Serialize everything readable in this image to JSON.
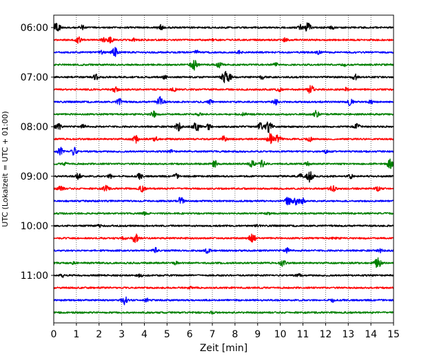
{
  "chart_data": {
    "type": "line",
    "title": "",
    "xlabel": "Zeit  [min]",
    "ylabel": "UTC (Lokalzeit = UTC + 01:00)",
    "xlim": [
      0,
      15
    ],
    "x_ticks": [
      0,
      1,
      2,
      3,
      4,
      5,
      6,
      7,
      8,
      9,
      10,
      11,
      12,
      13,
      14,
      15
    ],
    "y_ticks": [
      "06:00",
      "07:00",
      "08:00",
      "09:00",
      "10:00",
      "11:00"
    ],
    "grid": "vertical dotted lines at each minute",
    "legend": "none",
    "trace_minutes": 15,
    "colors": [
      "#000000",
      "#ff0000",
      "#0000ff",
      "#008000"
    ],
    "traces": [
      {
        "start": "06:00",
        "color": "#000000",
        "events": [
          [
            0.15,
            1.0
          ],
          [
            1.25,
            0.4
          ],
          [
            4.7,
            0.5
          ],
          [
            10.9,
            0.5
          ],
          [
            11.2,
            0.9
          ],
          [
            12.3,
            0.3
          ]
        ]
      },
      {
        "start": "06:15",
        "color": "#ff0000",
        "events": [
          [
            1.1,
            0.6
          ],
          [
            2.2,
            0.35
          ],
          [
            2.5,
            0.5
          ],
          [
            3.5,
            0.3
          ],
          [
            7.1,
            0.3
          ],
          [
            10.2,
            0.3
          ]
        ]
      },
      {
        "start": "06:30",
        "color": "#0000ff",
        "events": [
          [
            2.1,
            0.3
          ],
          [
            2.7,
            0.8
          ],
          [
            6.3,
            0.3
          ],
          [
            8.2,
            0.3
          ],
          [
            11.7,
            0.3
          ]
        ]
      },
      {
        "start": "06:45",
        "color": "#008000",
        "events": [
          [
            6.2,
            1.0
          ],
          [
            7.3,
            0.5
          ],
          [
            9.8,
            0.3
          ],
          [
            12.8,
            0.3
          ]
        ]
      },
      {
        "start": "07:00",
        "color": "#000000",
        "events": [
          [
            1.85,
            0.5
          ],
          [
            4.9,
            0.3
          ],
          [
            7.55,
            1.0
          ],
          [
            7.75,
            0.6
          ],
          [
            9.2,
            0.3
          ],
          [
            13.3,
            0.5
          ]
        ]
      },
      {
        "start": "07:15",
        "color": "#ff0000",
        "events": [
          [
            2.7,
            0.6
          ],
          [
            5.3,
            0.3
          ],
          [
            9.95,
            0.4
          ],
          [
            11.35,
            0.8
          ],
          [
            12.9,
            0.3
          ]
        ]
      },
      {
        "start": "07:30",
        "color": "#0000ff",
        "events": [
          [
            2.9,
            0.6
          ],
          [
            4.7,
            0.9
          ],
          [
            6.9,
            0.4
          ],
          [
            9.8,
            0.5
          ],
          [
            13.1,
            0.7
          ],
          [
            14.0,
            0.3
          ]
        ]
      },
      {
        "start": "07:45",
        "color": "#008000",
        "events": [
          [
            4.4,
            0.6
          ],
          [
            6.4,
            0.3
          ],
          [
            8.4,
            0.3
          ],
          [
            11.6,
            0.7
          ]
        ]
      },
      {
        "start": "08:00",
        "color": "#000000",
        "events": [
          [
            0.2,
            0.6
          ],
          [
            1.3,
            0.4
          ],
          [
            5.5,
            0.7
          ],
          [
            6.3,
            0.9
          ],
          [
            6.8,
            0.6
          ],
          [
            9.1,
            0.7
          ],
          [
            9.5,
            1.0
          ],
          [
            13.4,
            0.5
          ]
        ]
      },
      {
        "start": "08:15",
        "color": "#ff0000",
        "events": [
          [
            3.6,
            0.7
          ],
          [
            4.5,
            0.4
          ],
          [
            7.5,
            0.6
          ],
          [
            9.55,
            1.0
          ],
          [
            9.9,
            0.8
          ],
          [
            11.3,
            0.4
          ]
        ]
      },
      {
        "start": "08:30",
        "color": "#0000ff",
        "events": [
          [
            0.3,
            0.7
          ],
          [
            0.9,
            0.7
          ],
          [
            5.2,
            0.3
          ],
          [
            12.0,
            0.3
          ]
        ]
      },
      {
        "start": "08:45",
        "color": "#008000",
        "events": [
          [
            0.5,
            0.3
          ],
          [
            7.1,
            0.6
          ],
          [
            8.75,
            0.8
          ],
          [
            9.2,
            0.6
          ],
          [
            11.2,
            0.3
          ],
          [
            14.85,
            0.9
          ]
        ]
      },
      {
        "start": "09:00",
        "color": "#000000",
        "events": [
          [
            1.1,
            0.6
          ],
          [
            2.5,
            0.4
          ],
          [
            3.8,
            0.5
          ],
          [
            5.4,
            0.4
          ],
          [
            10.9,
            0.4
          ],
          [
            11.3,
            1.0
          ],
          [
            13.1,
            0.4
          ]
        ]
      },
      {
        "start": "09:15",
        "color": "#ff0000",
        "events": [
          [
            0.3,
            0.6
          ],
          [
            2.3,
            0.6
          ],
          [
            3.9,
            0.6
          ],
          [
            12.3,
            0.7
          ],
          [
            14.3,
            0.4
          ]
        ]
      },
      {
        "start": "09:30",
        "color": "#0000ff",
        "events": [
          [
            5.6,
            0.7
          ],
          [
            10.35,
            0.8
          ],
          [
            10.7,
            0.8
          ],
          [
            11.0,
            0.5
          ]
        ]
      },
      {
        "start": "09:45",
        "color": "#008000",
        "events": [
          [
            4.0,
            0.2
          ],
          [
            9.5,
            0.2
          ]
        ]
      },
      {
        "start": "10:00",
        "color": "#000000",
        "events": [
          [
            2.0,
            0.2
          ],
          [
            9.0,
            0.2
          ]
        ]
      },
      {
        "start": "10:15",
        "color": "#ff0000",
        "events": [
          [
            3.1,
            0.3
          ],
          [
            3.6,
            0.8
          ],
          [
            8.75,
            1.0
          ],
          [
            12.4,
            0.3
          ]
        ]
      },
      {
        "start": "10:30",
        "color": "#0000ff",
        "events": [
          [
            4.5,
            0.5
          ],
          [
            6.8,
            0.6
          ],
          [
            10.3,
            0.5
          ],
          [
            14.4,
            0.3
          ]
        ]
      },
      {
        "start": "10:45",
        "color": "#008000",
        "events": [
          [
            0.8,
            0.3
          ],
          [
            5.4,
            0.3
          ],
          [
            10.1,
            0.6
          ],
          [
            14.3,
            0.9
          ]
        ]
      },
      {
        "start": "11:00",
        "color": "#000000",
        "events": [
          [
            0.4,
            0.3
          ],
          [
            3.8,
            0.3
          ],
          [
            10.8,
            0.3
          ]
        ]
      },
      {
        "start": "11:15",
        "color": "#ff0000",
        "events": [
          [
            6.0,
            0.2
          ]
        ]
      },
      {
        "start": "11:30",
        "color": "#0000ff",
        "events": [
          [
            3.1,
            0.8
          ],
          [
            4.1,
            0.3
          ],
          [
            12.3,
            0.3
          ]
        ]
      },
      {
        "start": "11:45",
        "color": "#008000",
        "events": [
          [
            7.0,
            0.2
          ]
        ]
      }
    ]
  }
}
